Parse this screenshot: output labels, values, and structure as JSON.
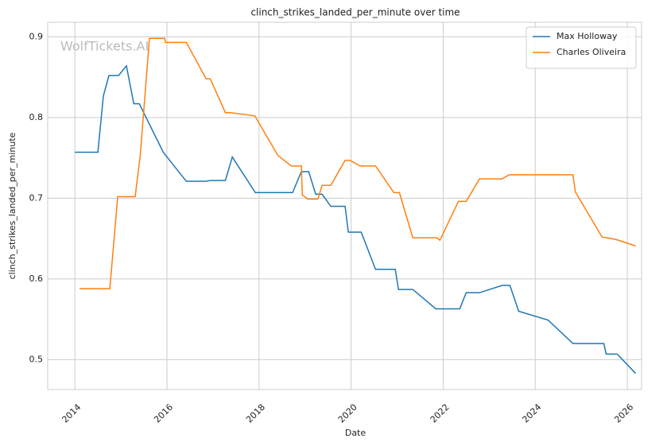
{
  "chart_data": {
    "type": "line",
    "title": "clinch_strikes_landed_per_minute over time",
    "xlabel": "Date",
    "ylabel": "clinch_strikes_landed_per_minute",
    "watermark": "WolfTickets.AI",
    "xlim": [
      2013.41,
      2026.31
    ],
    "xticks": [
      2014,
      2016,
      2018,
      2020,
      2022,
      2024,
      2026
    ],
    "ylim": [
      0.463,
      0.918
    ],
    "yticks": [
      0.5,
      0.6,
      0.7,
      0.8,
      0.9
    ],
    "grid": true,
    "legend": "upper right",
    "series": [
      {
        "name": "Max Holloway",
        "color": "#1f77b4",
        "x": [
          2014.0,
          2014.5,
          2014.62,
          2014.74,
          2014.95,
          2015.12,
          2015.28,
          2015.4,
          2015.92,
          2016.42,
          2016.85,
          2016.94,
          2017.27,
          2017.42,
          2017.92,
          2018.73,
          2018.92,
          2019.08,
          2019.23,
          2019.37,
          2019.56,
          2019.87,
          2019.94,
          2020.22,
          2020.53,
          2020.96,
          2021.03,
          2021.34,
          2021.84,
          2022.36,
          2022.5,
          2022.79,
          2023.28,
          2023.45,
          2023.64,
          2024.28,
          2024.82,
          2025.49,
          2025.54,
          2025.78,
          2026.18
        ],
        "values": [
          0.757,
          0.757,
          0.827,
          0.852,
          0.852,
          0.864,
          0.817,
          0.817,
          0.757,
          0.721,
          0.721,
          0.722,
          0.722,
          0.751,
          0.707,
          0.707,
          0.733,
          0.733,
          0.705,
          0.705,
          0.69,
          0.69,
          0.658,
          0.658,
          0.612,
          0.612,
          0.587,
          0.587,
          0.563,
          0.563,
          0.583,
          0.583,
          0.592,
          0.592,
          0.56,
          0.549,
          0.52,
          0.52,
          0.507,
          0.507,
          0.483
        ]
      },
      {
        "name": "Charles Oliveira",
        "color": "#ff7f0e",
        "x": [
          2014.1,
          2014.76,
          2014.93,
          2015.31,
          2015.42,
          2015.62,
          2015.95,
          2015.97,
          2016.42,
          2016.68,
          2016.85,
          2016.94,
          2017.27,
          2017.39,
          2017.91,
          2018.41,
          2018.7,
          2018.92,
          2018.94,
          2019.06,
          2019.28,
          2019.37,
          2019.56,
          2019.87,
          2019.98,
          2020.19,
          2020.53,
          2020.93,
          2021.05,
          2021.34,
          2021.86,
          2021.93,
          2022.33,
          2022.5,
          2022.79,
          2023.28,
          2023.43,
          2024.82,
          2024.87,
          2025.45,
          2025.75,
          2026.18
        ],
        "values": [
          0.588,
          0.588,
          0.702,
          0.702,
          0.753,
          0.898,
          0.898,
          0.893,
          0.893,
          0.866,
          0.848,
          0.848,
          0.806,
          0.806,
          0.802,
          0.753,
          0.74,
          0.74,
          0.704,
          0.699,
          0.699,
          0.716,
          0.716,
          0.747,
          0.747,
          0.74,
          0.74,
          0.707,
          0.707,
          0.651,
          0.651,
          0.648,
          0.696,
          0.696,
          0.724,
          0.724,
          0.729,
          0.729,
          0.708,
          0.652,
          0.649,
          0.641
        ]
      }
    ]
  }
}
